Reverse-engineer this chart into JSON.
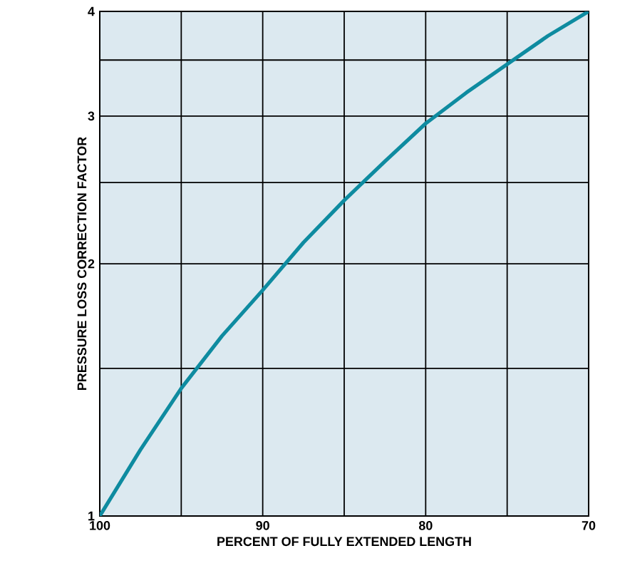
{
  "chart_data": {
    "type": "line",
    "xlabel": "PERCENT OF FULLY EXTENDED LENGTH",
    "ylabel": "PRESSURE LOSS CORRECTION FACTOR",
    "x": [
      100,
      97.5,
      95,
      92.5,
      90,
      87.5,
      85,
      82.5,
      80,
      77.5,
      75,
      72.5,
      70
    ],
    "series": [
      {
        "color": "#0e8ba0",
        "values": [
          1,
          1.2,
          1.42,
          1.64,
          1.86,
          2.12,
          2.38,
          2.65,
          2.94,
          3.2,
          3.46,
          3.74,
          4
        ]
      }
    ],
    "xlim": [
      100,
      70
    ],
    "ylim": [
      1,
      4
    ],
    "log": "y",
    "xticks": [
      100,
      {
        "value": 95,
        "label": null
      },
      90,
      {
        "value": 85,
        "label": null
      },
      80,
      {
        "value": 75,
        "label": null
      },
      70
    ],
    "yticks": [
      1,
      {
        "value": 1.5,
        "label": null
      },
      2,
      {
        "value": 2.5,
        "label": null
      },
      3,
      {
        "value": 3.5,
        "label": null
      },
      4
    ],
    "grid": true,
    "marker": "none",
    "line_style": "solid"
  }
}
